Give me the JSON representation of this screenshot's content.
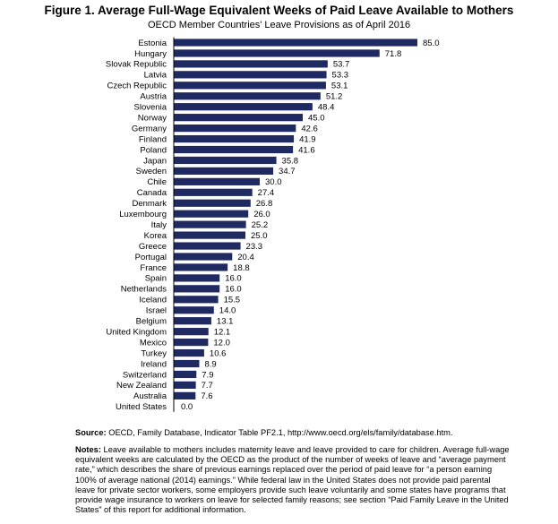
{
  "chart_data": {
    "type": "bar",
    "orientation": "horizontal",
    "title": "Figure 1. Average Full-Wage Equivalent Weeks of Paid Leave Available to Mothers",
    "subtitle": "OECD Member Countries' Leave Provisions as of April 2016",
    "categories": [
      "Estonia",
      "Hungary",
      "Slovak Republic",
      "Latvia",
      "Czech Republic",
      "Austria",
      "Slovenia",
      "Norway",
      "Germany",
      "Finland",
      "Poland",
      "Japan",
      "Sweden",
      "Chile",
      "Canada",
      "Denmark",
      "Luxembourg",
      "Italy",
      "Korea",
      "Greece",
      "Portugal",
      "France",
      "Spain",
      "Netherlands",
      "Iceland",
      "Israel",
      "Belgium",
      "United Kingdom",
      "Mexico",
      "Turkey",
      "Ireland",
      "Switzerland",
      "New Zealand",
      "Australia",
      "United States"
    ],
    "values": [
      85.0,
      71.8,
      53.7,
      53.3,
      53.1,
      51.2,
      48.4,
      45.0,
      42.6,
      41.9,
      41.6,
      35.8,
      34.7,
      30.0,
      27.4,
      26.8,
      26.0,
      25.2,
      25.0,
      23.3,
      20.4,
      18.8,
      16.0,
      16.0,
      15.5,
      14.0,
      13.1,
      12.1,
      12.0,
      10.6,
      8.9,
      7.9,
      7.7,
      7.6,
      0.0
    ],
    "value_labels": [
      "85.0",
      "71.8",
      "53.7",
      "53.3",
      "53.1",
      "51.2",
      "48.4",
      "45.0",
      "42.6",
      "41.9",
      "41.6",
      "35.8",
      "34.7",
      "30.0",
      "27.4",
      "26.8",
      "26.0",
      "25.2",
      "25.0",
      "23.3",
      "20.4",
      "18.8",
      "16.0",
      "16.0",
      "15.5",
      "14.0",
      "13.1",
      "12.1",
      "12.0",
      "10.6",
      "8.9",
      "7.9",
      "7.7",
      "7.6",
      "0.0"
    ],
    "xlim": [
      0,
      85
    ],
    "xlabel": "",
    "ylabel": "",
    "bar_color": "#1f2a63",
    "grid": false
  },
  "source": {
    "label": "Source:",
    "text": "OECD, Family Database, Indicator Table PF2.1, http://www.oecd.org/els/family/database.htm."
  },
  "notes": {
    "label": "Notes:",
    "text": "Leave available to mothers includes maternity leave and leave provided to care for children. Average full-wage equivalent weeks are calculated by the OECD as the product of the number of weeks of leave and “average payment rate,” which describes the share of previous earnings replaced over the period of paid leave for “a person earning 100% of average national (2014) earnings.” While federal law in the United States does not provide paid parental leave for private sector workers, some employers provide such leave voluntarily and some states have programs that provide wage insurance to workers on leave for selected family reasons; see section “Paid Family Leave in the United States” of this report for additional information."
  }
}
